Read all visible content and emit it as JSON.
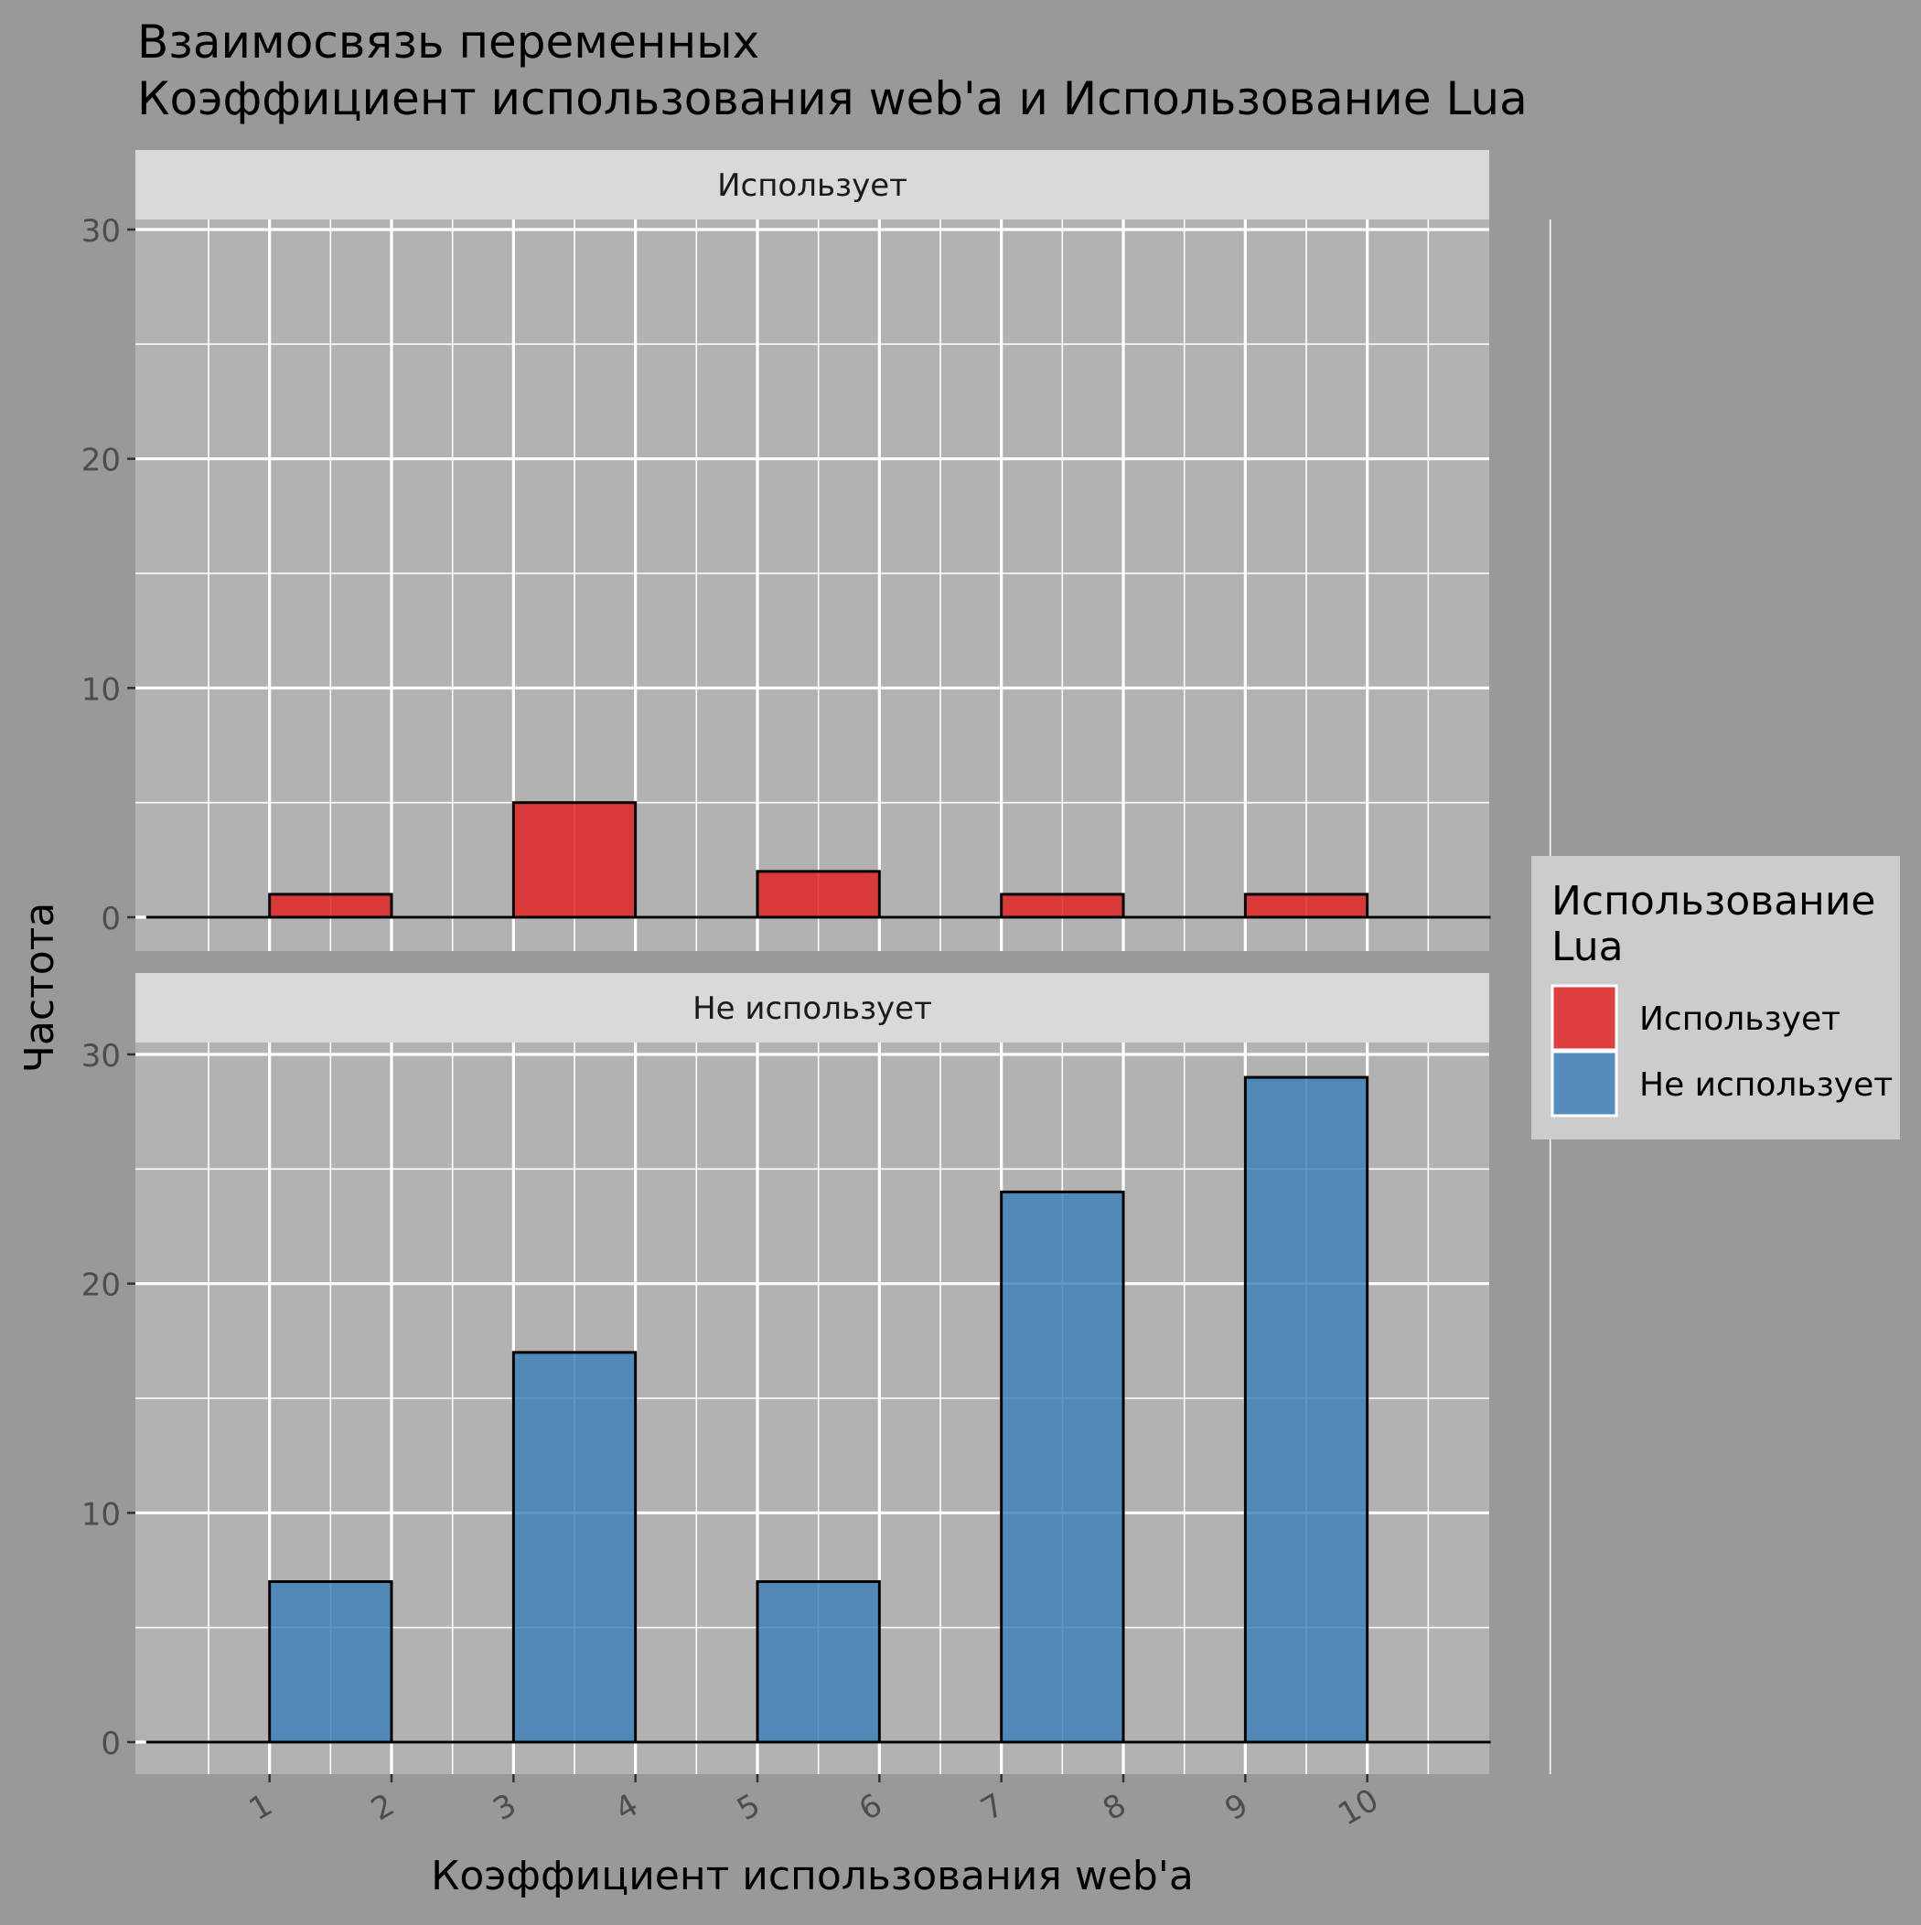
{
  "chart_data": {
    "type": "histogram",
    "title": "Взаимосвязь переменных\n Коэффициент использования web'a и Использование Lua",
    "xlabel": "Коэффициент использования web'a",
    "ylabel": "Частота",
    "x_tick_labels": [
      "1",
      "2",
      "3",
      "4",
      "5",
      "6",
      "7",
      "8",
      "9",
      "10"
    ],
    "xlim": [
      -0.1,
      11.0
    ],
    "ylim": [
      0,
      32
    ],
    "y_ticks": [
      0,
      10,
      20,
      30
    ],
    "bins": [
      [
        0,
        1
      ],
      [
        1,
        2
      ],
      [
        2,
        3
      ],
      [
        3,
        4
      ],
      [
        4,
        5
      ],
      [
        5,
        6
      ],
      [
        6,
        7
      ],
      [
        7,
        8
      ],
      [
        8,
        9
      ],
      [
        9,
        10
      ],
      [
        10,
        11
      ]
    ],
    "grid": true,
    "legend": {
      "title": "Использование\nLua",
      "position": "right",
      "entries": [
        {
          "label": "Использует",
          "color": "#E41A1C"
        },
        {
          "label": "Не использует",
          "color": "#377EB8"
        }
      ]
    },
    "panels": [
      {
        "strip_label": "Использует",
        "color": "#E41A1C",
        "counts": [
          0,
          1,
          0,
          5,
          0,
          2,
          0,
          1,
          0,
          1,
          0
        ]
      },
      {
        "strip_label": "Не использует",
        "color": "#377EB8",
        "counts": [
          0,
          7,
          0,
          17,
          0,
          7,
          0,
          24,
          0,
          29,
          0
        ]
      }
    ]
  },
  "colors": {
    "background": "#999999",
    "panel": "#B2B2B2",
    "strip": "#D9D9D9",
    "legend_box": "#CCCCCC",
    "grid": "#FFFFFF"
  }
}
